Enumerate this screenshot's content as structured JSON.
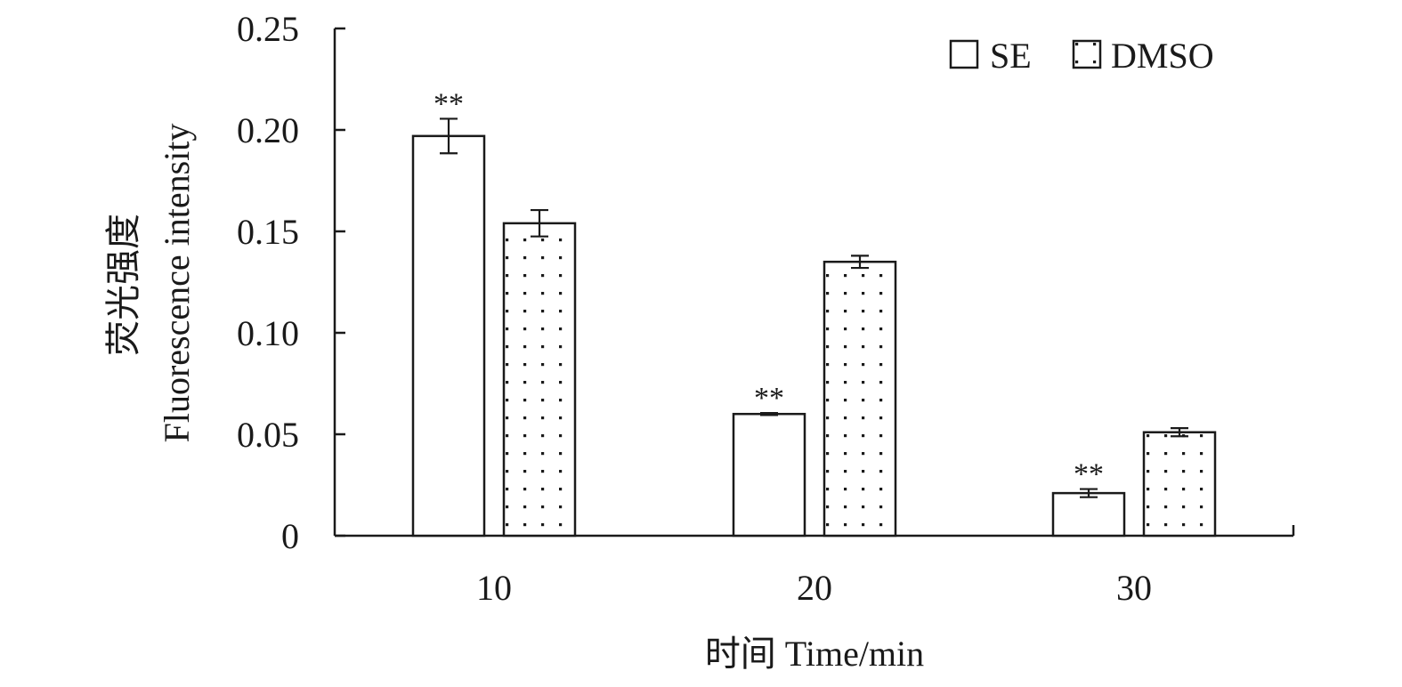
{
  "chart_data": {
    "type": "bar",
    "categories": [
      "10",
      "20",
      "30"
    ],
    "series": [
      {
        "name": "SE",
        "pattern": "none",
        "values": [
          0.197,
          0.06,
          0.021
        ],
        "errors": [
          0.0085,
          0.0005,
          0.002
        ],
        "significance": [
          "**",
          "**",
          "**"
        ]
      },
      {
        "name": "DMSO",
        "pattern": "dots",
        "values": [
          0.154,
          0.135,
          0.051
        ],
        "errors": [
          0.0065,
          0.003,
          0.002
        ],
        "significance": [
          "",
          "",
          ""
        ]
      }
    ],
    "xlabel": "时间 Time/min",
    "ylabel_zh": "荧光强度",
    "ylabel_en": "Fluorescence intensity",
    "ylim": [
      0,
      0.25
    ],
    "yticks": [
      "0",
      "0.05",
      "0.10",
      "0.15",
      "0.20",
      "0.25"
    ],
    "grid": false,
    "legend_position": "top-right",
    "colors": {
      "ink": "#1a1a1a",
      "fill": "#ffffff"
    }
  }
}
